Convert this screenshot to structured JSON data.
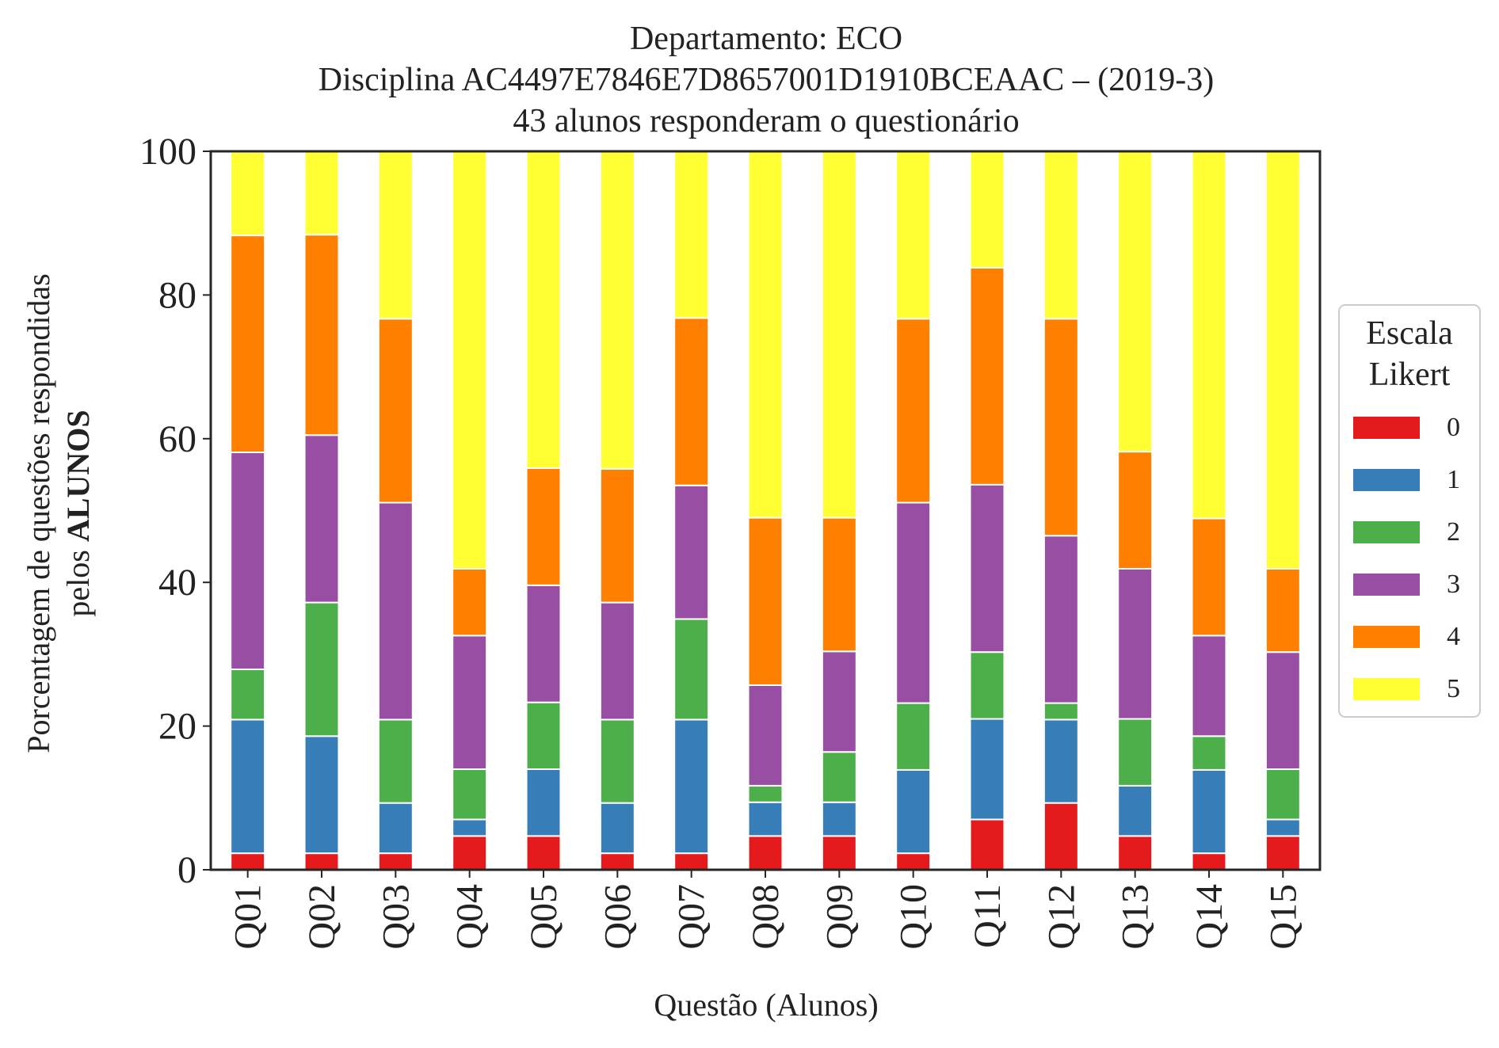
{
  "chart_data": {
    "type": "bar",
    "stacked": true,
    "title_lines": [
      "Departamento: ECO",
      "Disciplina AC4497E7846E7D8657001D1910BCEAAC – (2019-3)",
      "43 alunos responderam o questionário"
    ],
    "xlabel": "Questão (Alunos)",
    "ylabel_line1": "Porcentagem de questões respondidas",
    "ylabel_line2_prefix": "pelos ",
    "ylabel_line2_bold": "ALUNOS",
    "ylim": [
      0,
      100
    ],
    "yticks": [
      0,
      20,
      40,
      60,
      80,
      100
    ],
    "grid": false,
    "categories": [
      "Q01",
      "Q02",
      "Q03",
      "Q04",
      "Q05",
      "Q06",
      "Q07",
      "Q08",
      "Q09",
      "Q10",
      "Q11",
      "Q12",
      "Q13",
      "Q14",
      "Q15"
    ],
    "legend": {
      "title_lines": [
        "Escala",
        "Likert"
      ],
      "placement": "center-right"
    },
    "series": [
      {
        "name": "0",
        "color": "#e41a1c",
        "values": [
          2.3,
          2.3,
          2.3,
          4.7,
          4.7,
          2.3,
          2.3,
          4.7,
          4.7,
          2.3,
          7.0,
          9.3,
          4.7,
          2.3,
          4.7
        ]
      },
      {
        "name": "1",
        "color": "#377eb8",
        "values": [
          18.6,
          16.3,
          7.0,
          2.3,
          9.3,
          7.0,
          18.6,
          4.7,
          4.7,
          11.6,
          14.0,
          11.6,
          7.0,
          11.6,
          2.3
        ]
      },
      {
        "name": "2",
        "color": "#4daf4a",
        "values": [
          7.0,
          18.6,
          11.6,
          7.0,
          9.3,
          11.6,
          14.0,
          2.3,
          7.0,
          9.3,
          9.3,
          2.3,
          9.3,
          4.7,
          7.0
        ]
      },
      {
        "name": "3",
        "color": "#984ea3",
        "values": [
          30.2,
          23.3,
          30.2,
          18.6,
          16.3,
          16.3,
          18.6,
          14.0,
          14.0,
          27.9,
          23.3,
          23.3,
          20.9,
          14.0,
          16.3
        ]
      },
      {
        "name": "4",
        "color": "#ff7f00",
        "values": [
          30.2,
          27.9,
          25.6,
          9.3,
          16.3,
          18.6,
          23.3,
          23.3,
          18.6,
          25.6,
          30.2,
          30.2,
          16.3,
          16.3,
          11.6
        ]
      },
      {
        "name": "5",
        "color": "#ffff33",
        "values": [
          11.6,
          11.6,
          23.3,
          58.1,
          44.2,
          44.2,
          23.3,
          51.2,
          51.2,
          23.3,
          16.3,
          23.3,
          41.9,
          51.2,
          58.1
        ]
      }
    ]
  }
}
